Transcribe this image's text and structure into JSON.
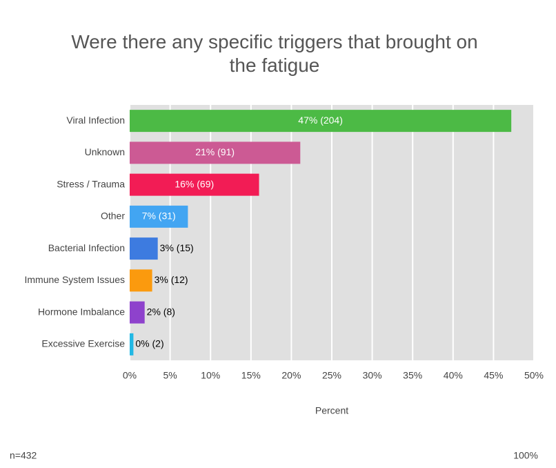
{
  "chart_data": {
    "type": "bar",
    "orientation": "horizontal",
    "title": "Were there any specific triggers that brought on the fatigue",
    "categories": [
      "Viral Infection",
      "Unknown",
      "Stress / Trauma",
      "Other",
      "Bacterial Infection",
      "Immune System Issues",
      "Hormone Imbalance",
      "Excessive Exercise"
    ],
    "values": [
      47.2,
      21.1,
      16.0,
      7.2,
      3.47,
      2.78,
      1.85,
      0.46
    ],
    "value_labels": [
      "47% (204)",
      "21% (91)",
      "16% (69)",
      "7% (31)",
      "3% (15)",
      "3% (12)",
      "2% (8)",
      "0% (2)"
    ],
    "colors": [
      "#4cba45",
      "#cc5a94",
      "#f21c55",
      "#42a5f2",
      "#3d7be0",
      "#fb9a0e",
      "#8e42cc",
      "#22b8e4"
    ],
    "xlabel": "Percent",
    "xlim": [
      0,
      50
    ],
    "xticks": [
      {
        "value": 0,
        "label": "0%"
      },
      {
        "value": 5,
        "label": "5%"
      },
      {
        "value": 10,
        "label": "10%"
      },
      {
        "value": 15,
        "label": "15%"
      },
      {
        "value": 20,
        "label": "20%"
      },
      {
        "value": 25,
        "label": "25%"
      },
      {
        "value": 30,
        "label": "30%"
      },
      {
        "value": 35,
        "label": "35%"
      },
      {
        "value": 40,
        "label": "40%"
      },
      {
        "value": 45,
        "label": "45%"
      },
      {
        "value": 50,
        "label": "50%"
      }
    ],
    "grid": true,
    "footer_left": "n=432",
    "footer_right": "100%"
  }
}
